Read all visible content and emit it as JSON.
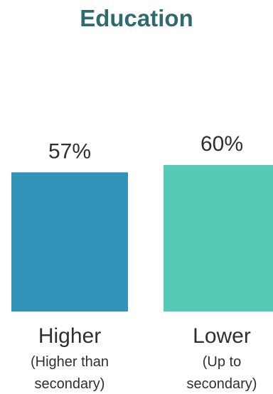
{
  "chart_data": {
    "type": "bar",
    "title": "Education",
    "categories": [
      "Higher",
      "Lower"
    ],
    "category_sublabels": [
      [
        "(Higher than",
        "secondary)"
      ],
      [
        "(Up to",
        "secondary)"
      ]
    ],
    "values": [
      57,
      60
    ],
    "value_labels": [
      "57%",
      "60%"
    ],
    "colors": [
      "#3193b7",
      "#55cbb6"
    ],
    "xlabel": "",
    "ylabel": "",
    "grid": false,
    "legend": "none"
  }
}
